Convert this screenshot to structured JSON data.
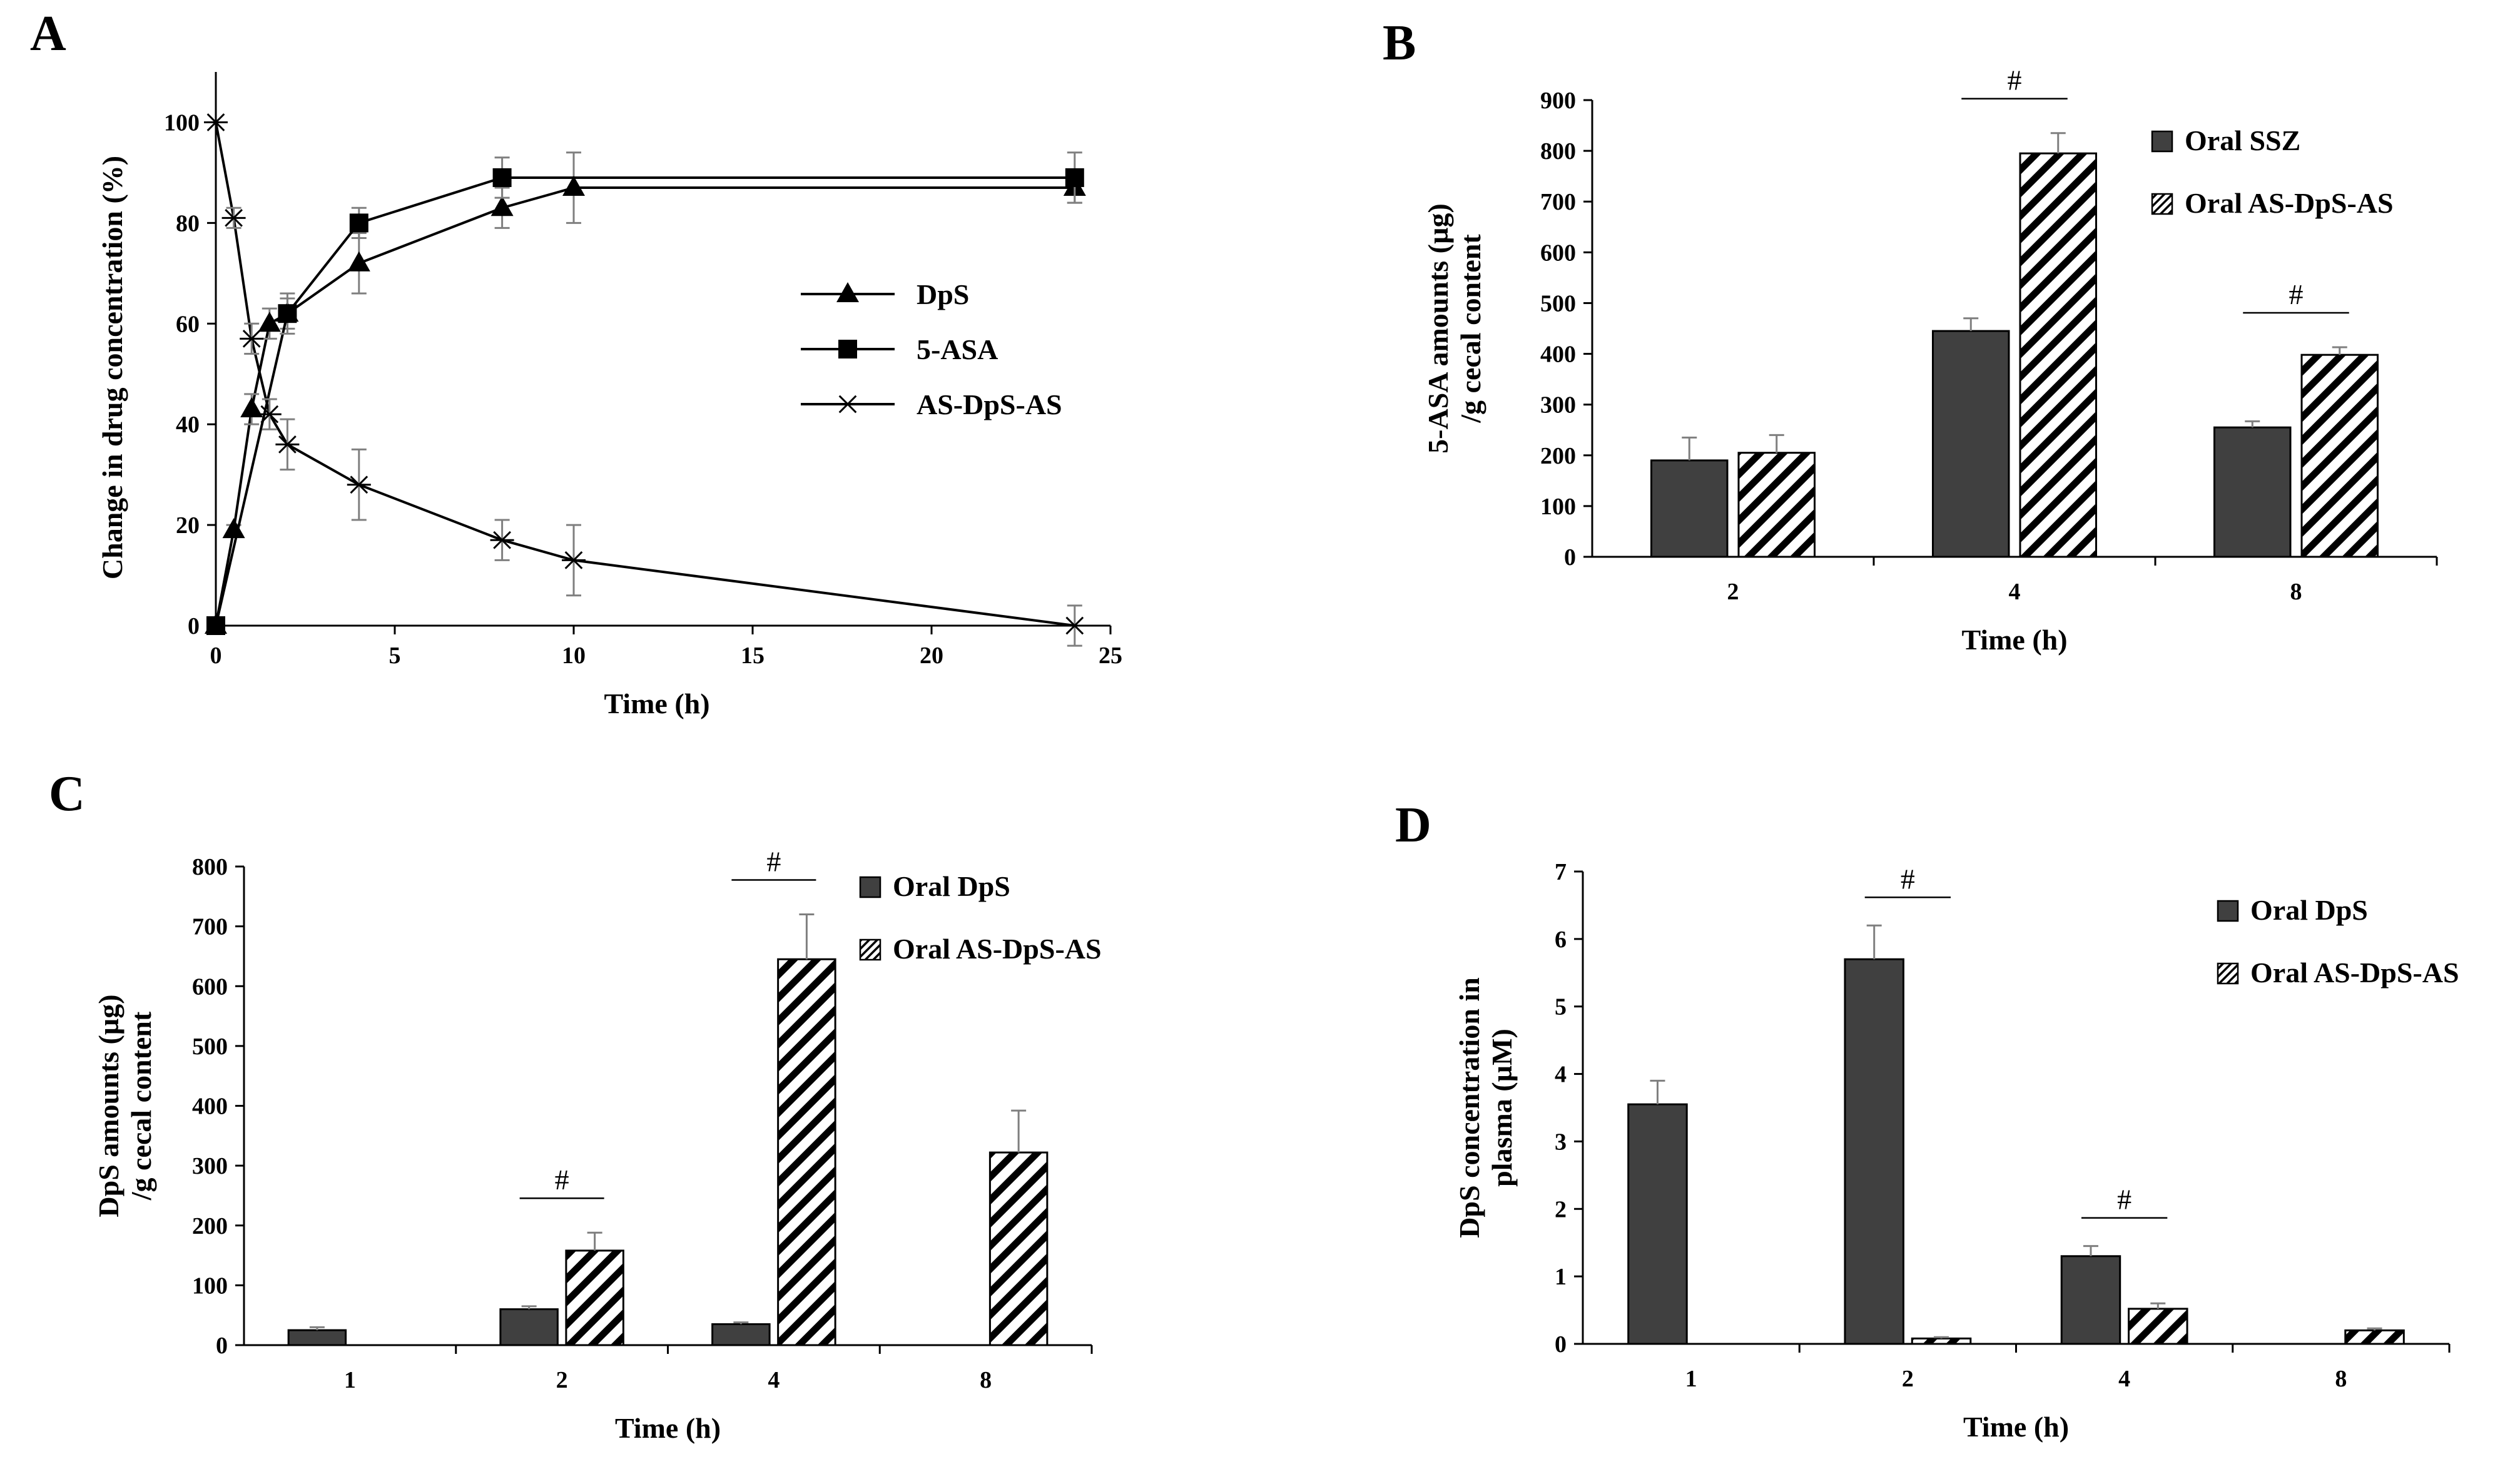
{
  "colors": {
    "dark_bar": "#404040",
    "axis": "#000000",
    "error_bar": "#7f7f7f",
    "hatch": "#000000"
  },
  "chart_data": [
    {
      "id": "A",
      "panel_letter": "A",
      "type": "line",
      "xlabel": "Time (h)",
      "ylabel": "Change in drug concentration (%)",
      "xlim": [
        0,
        25
      ],
      "ylim": [
        0,
        110
      ],
      "xticks": [
        0,
        5,
        10,
        15,
        20,
        25
      ],
      "yticks": [
        0,
        20,
        40,
        60,
        80,
        100
      ],
      "legend_position": "center-right",
      "series": [
        {
          "name": "DpS",
          "marker": "triangle",
          "x": [
            0,
            0.5,
            1,
            1.5,
            2,
            4,
            8,
            10,
            24
          ],
          "y": [
            0,
            19,
            43,
            60,
            62,
            72,
            83,
            87,
            87
          ],
          "err": [
            0,
            1,
            3,
            3,
            3,
            6,
            4,
            7,
            3
          ]
        },
        {
          "name": "5-ASA",
          "marker": "square",
          "x": [
            0,
            2,
            4,
            8,
            24
          ],
          "y": [
            0,
            62,
            80,
            89,
            89
          ],
          "err": [
            0,
            4,
            3,
            4,
            5
          ]
        },
        {
          "name": "AS-DpS-AS",
          "marker": "star",
          "x": [
            0,
            0.5,
            1,
            1.5,
            2,
            4,
            8,
            10,
            24
          ],
          "y": [
            100,
            81,
            57,
            42,
            36,
            28,
            17,
            13,
            0
          ],
          "err": [
            0,
            2,
            3,
            3,
            5,
            7,
            4,
            7,
            4
          ]
        }
      ]
    },
    {
      "id": "B",
      "panel_letter": "B",
      "type": "bar",
      "xlabel": "Time (h)",
      "ylabel_lines": [
        "5-ASA  amounts (µg)",
        "/g cecal content"
      ],
      "categories": [
        "2",
        "4",
        "8"
      ],
      "ylim": [
        0,
        900
      ],
      "yticks": [
        0,
        100,
        200,
        300,
        400,
        500,
        600,
        700,
        800,
        900
      ],
      "legend_position": "top-right",
      "series": [
        {
          "name": "Oral SSZ",
          "fill": "solid",
          "values": [
            190,
            445,
            255
          ],
          "err": [
            45,
            25,
            12
          ]
        },
        {
          "name": "Oral AS-DpS-AS",
          "fill": "hatch",
          "values": [
            205,
            795,
            398
          ],
          "err": [
            35,
            40,
            15
          ]
        }
      ],
      "significance": [
        {
          "category": "4",
          "label": "#"
        },
        {
          "category": "8",
          "label": "#"
        }
      ]
    },
    {
      "id": "C",
      "panel_letter": "C",
      "type": "bar",
      "xlabel": "Time (h)",
      "ylabel_lines": [
        "DpS  amounts (µg)",
        "/g cecal content"
      ],
      "categories": [
        "1",
        "2",
        "4",
        "8"
      ],
      "ylim": [
        0,
        800
      ],
      "yticks": [
        0,
        100,
        200,
        300,
        400,
        500,
        600,
        700,
        800
      ],
      "legend_position": "top-right",
      "series": [
        {
          "name": "Oral DpS",
          "fill": "solid",
          "values": [
            25,
            60,
            35,
            0
          ],
          "err": [
            5,
            5,
            3,
            0
          ]
        },
        {
          "name": "Oral AS-DpS-AS",
          "fill": "hatch",
          "values": [
            0,
            158,
            645,
            322
          ],
          "err": [
            0,
            30,
            75,
            70
          ]
        }
      ],
      "significance": [
        {
          "category": "2",
          "label": "#"
        },
        {
          "category": "4",
          "label": "#"
        }
      ]
    },
    {
      "id": "D",
      "panel_letter": "D",
      "type": "bar",
      "xlabel": "Time (h)",
      "ylabel_lines": [
        "DpS concentration in",
        "plasma (µM)"
      ],
      "categories": [
        "1",
        "2",
        "4",
        "8"
      ],
      "ylim": [
        0,
        7
      ],
      "yticks": [
        0,
        1,
        2,
        3,
        4,
        5,
        6,
        7
      ],
      "legend_position": "top-right",
      "series": [
        {
          "name": "Oral DpS",
          "fill": "solid",
          "values": [
            3.55,
            5.7,
            1.3,
            0
          ],
          "err": [
            0.35,
            0.5,
            0.15,
            0
          ]
        },
        {
          "name": "Oral AS-DpS-AS",
          "fill": "hatch",
          "values": [
            0,
            0.08,
            0.52,
            0.2
          ],
          "err": [
            0,
            0.02,
            0.08,
            0.03
          ]
        }
      ],
      "significance": [
        {
          "category": "2",
          "label": "#"
        },
        {
          "category": "4",
          "label": "#"
        }
      ]
    }
  ]
}
